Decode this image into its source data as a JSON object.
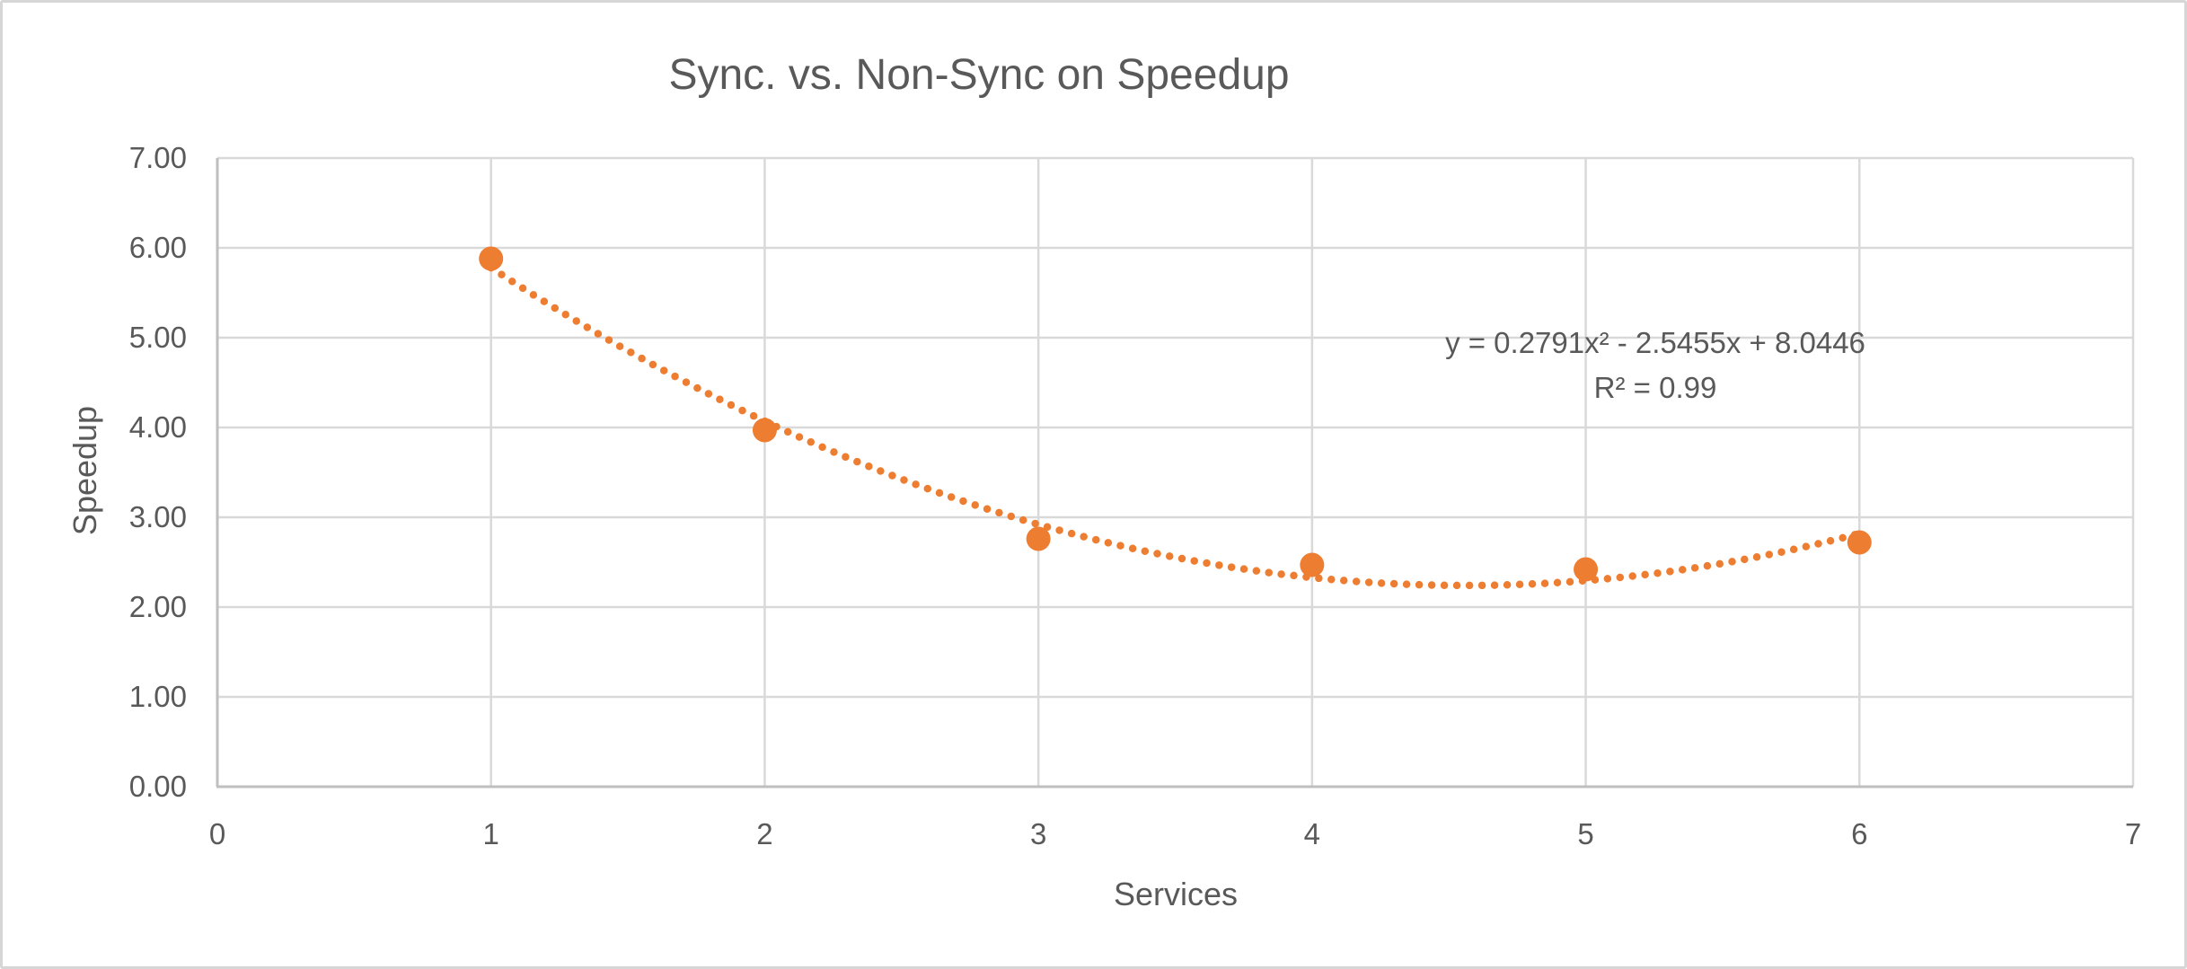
{
  "chart_data": {
    "type": "scatter",
    "title": "Sync. vs. Non-Sync on Speedup",
    "xlabel": "Services",
    "ylabel": "Speedup",
    "xlim": [
      0,
      7
    ],
    "ylim": [
      0,
      7
    ],
    "grid": true,
    "legend": false,
    "x_tick_labels": [
      "0",
      "1",
      "2",
      "3",
      "4",
      "5",
      "6",
      "7"
    ],
    "y_tick_labels": [
      "0.00",
      "1.00",
      "2.00",
      "3.00",
      "4.00",
      "5.00",
      "6.00",
      "7.00"
    ],
    "series": [
      {
        "name": "Speedup",
        "x": [
          1,
          2,
          3,
          4,
          5,
          6
        ],
        "y": [
          5.88,
          3.97,
          2.76,
          2.47,
          2.42,
          2.72
        ],
        "marker": "circle"
      }
    ],
    "trendline": {
      "type": "polynomial",
      "order": 2,
      "coefficients": [
        0.2791,
        -2.5455,
        8.0446
      ],
      "domain": [
        1,
        6
      ],
      "style": "dotted",
      "equation_label": "y = 0.2791x² - 2.5455x + 8.0446",
      "r2_label": "R² = 0.99"
    },
    "colors": {
      "marker": "#ED7D31",
      "trendline": "#ED7D31",
      "gridline": "#D9D9D9",
      "axis_line": "#BFBFBF",
      "text": "#595959",
      "background": "#FFFFFF"
    }
  }
}
